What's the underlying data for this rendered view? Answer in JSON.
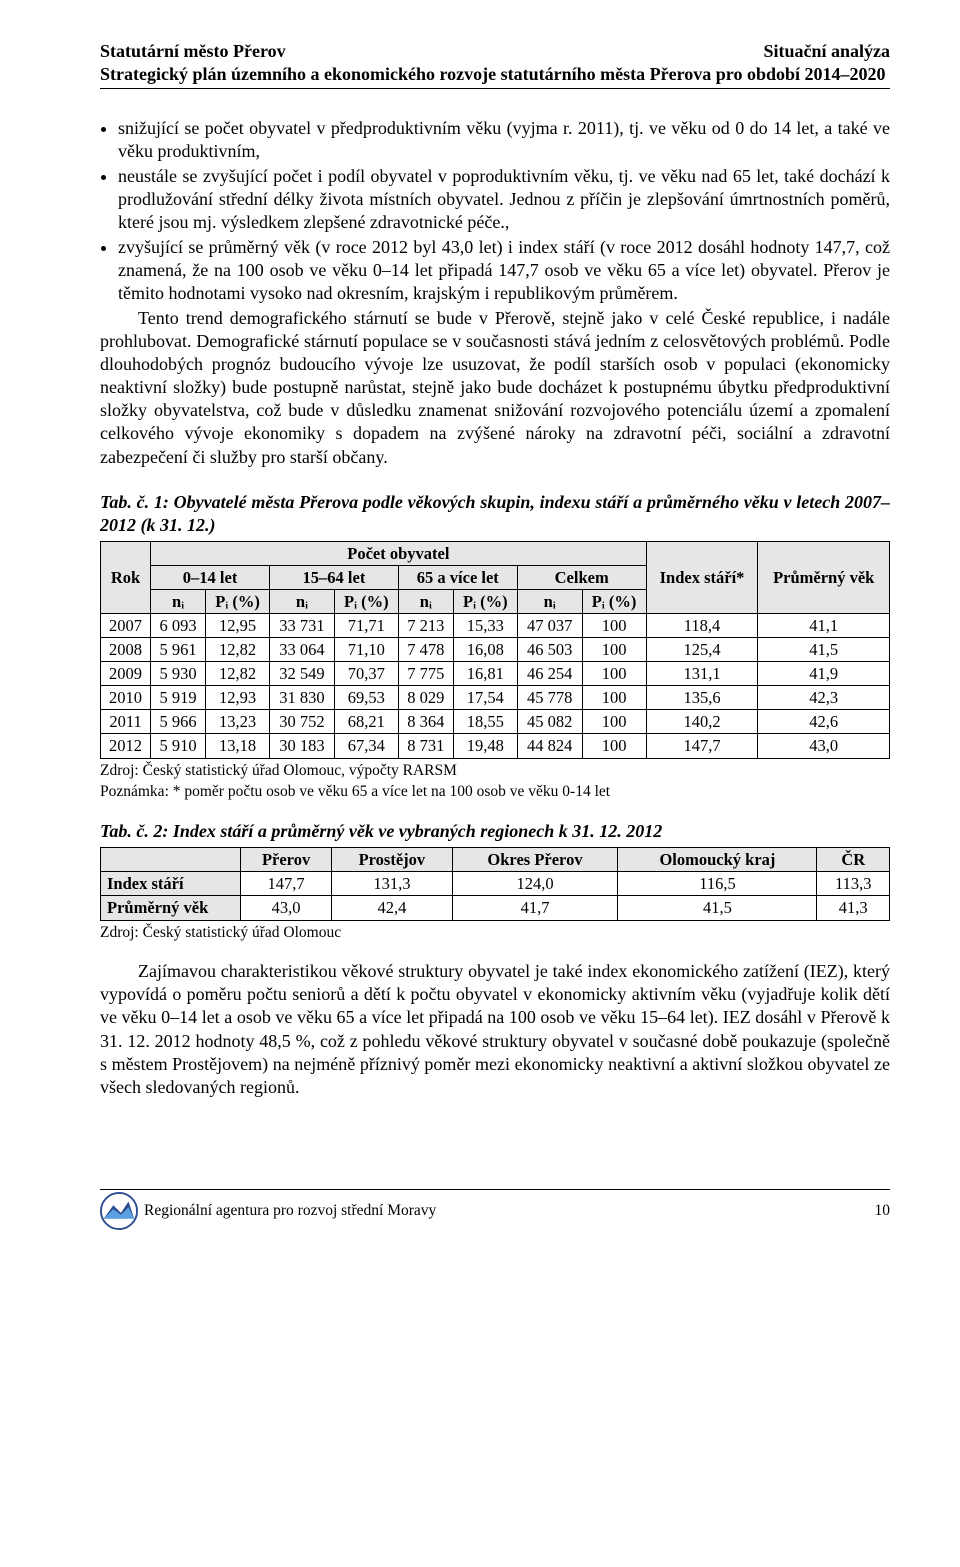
{
  "header": {
    "left": "Statutární město Přerov",
    "right": "Situační analýza",
    "sub": "Strategický plán územního a ekonomického rozvoje statutárního města Přerova pro období 2014–2020"
  },
  "bullets": [
    "snižující se počet obyvatel v předproduktivním věku (vyjma r. 2011), tj. ve věku od 0 do 14 let, a také ve věku produktivním,",
    "neustále se zvyšující počet i podíl obyvatel v poproduktivním věku, tj. ve věku nad 65 let, také dochází k prodlužování střední délky života místních obyvatel. Jednou z příčin je zlepšování úmrtnostních poměrů, které jsou mj. výsledkem zlepšené zdravotnické péče.,",
    "zvyšující se průměrný věk (v roce 2012 byl 43,0 let) i index stáří (v roce 2012 dosáhl hodnoty 147,7, což znamená, že na 100 osob ve věku 0–14 let připadá 147,7 osob ve věku 65 a více let) obyvatel. Přerov je těmito hodnotami vysoko nad okresním, krajským i republikovým průměrem."
  ],
  "para1": "Tento trend demografického stárnutí se bude v Přerově, stejně jako v celé České republice, i nadále prohlubovat. Demografické stárnutí populace se v současnosti stává jedním z celosvětových problémů. Podle dlouhodobých prognóz budoucího vývoje lze usuzovat, že podíl starších osob v populaci (ekonomicky neaktivní složky) bude postupně narůstat, stejně jako bude docházet k postupnému úbytku předproduktivní složky obyvatelstva, což bude v důsledku znamenat snižování rozvojového potenciálu území a zpomalení celkového vývoje ekonomiky s dopadem na zvýšené nároky na zdravotní péči, sociální a zdravotní zabezpečení či služby pro starší občany.",
  "tab1": {
    "caption": "Tab. č. 1:  Obyvatelé města Přerova podle věkových skupin, indexu stáří a průměrného věku v letech 2007–2012 (k 31. 12.)",
    "head": {
      "rok": "Rok",
      "pocet": "Počet obyvatel",
      "g0": "0–14 let",
      "g1": "15–64 let",
      "g2": "65 a více let",
      "g3": "Celkem",
      "idx": "Index stáří*",
      "vek": "Průměrný věk",
      "ni": "nᵢ",
      "pi": "Pᵢ (%)"
    },
    "rows": [
      {
        "rok": "2007",
        "a": "6 093",
        "ap": "12,95",
        "b": "33 731",
        "bp": "71,71",
        "c": "7 213",
        "cp": "15,33",
        "d": "47 037",
        "dp": "100",
        "idx": "118,4",
        "vek": "41,1"
      },
      {
        "rok": "2008",
        "a": "5 961",
        "ap": "12,82",
        "b": "33 064",
        "bp": "71,10",
        "c": "7 478",
        "cp": "16,08",
        "d": "46 503",
        "dp": "100",
        "idx": "125,4",
        "vek": "41,5"
      },
      {
        "rok": "2009",
        "a": "5 930",
        "ap": "12,82",
        "b": "32 549",
        "bp": "70,37",
        "c": "7 775",
        "cp": "16,81",
        "d": "46 254",
        "dp": "100",
        "idx": "131,1",
        "vek": "41,9"
      },
      {
        "rok": "2010",
        "a": "5 919",
        "ap": "12,93",
        "b": "31 830",
        "bp": "69,53",
        "c": "8 029",
        "cp": "17,54",
        "d": "45 778",
        "dp": "100",
        "idx": "135,6",
        "vek": "42,3"
      },
      {
        "rok": "2011",
        "a": "5 966",
        "ap": "13,23",
        "b": "30 752",
        "bp": "68,21",
        "c": "8 364",
        "cp": "18,55",
        "d": "45 082",
        "dp": "100",
        "idx": "140,2",
        "vek": "42,6"
      },
      {
        "rok": "2012",
        "a": "5 910",
        "ap": "13,18",
        "b": "30 183",
        "bp": "67,34",
        "c": "8 731",
        "cp": "19,48",
        "d": "44 824",
        "dp": "100",
        "idx": "147,7",
        "vek": "43,0"
      }
    ],
    "source": "Zdroj: Český statistický úřad Olomouc, výpočty RARSM",
    "note": "Poznámka: * poměr počtu osob ve věku 65 a více let na 100 osob ve věku 0-14 let"
  },
  "tab2": {
    "caption": "Tab. č. 2: Index stáří a průměrný věk ve vybraných regionech k 31. 12. 2012",
    "cols": [
      "",
      "Přerov",
      "Prostějov",
      "Okres Přerov",
      "Olomoucký kraj",
      "ČR"
    ],
    "rows": [
      {
        "label": "Index stáří",
        "v": [
          "147,7",
          "131,3",
          "124,0",
          "116,5",
          "113,3"
        ]
      },
      {
        "label": "Průměrný věk",
        "v": [
          "43,0",
          "42,4",
          "41,7",
          "41,5",
          "41,3"
        ]
      }
    ],
    "source": "Zdroj: Český statistický úřad Olomouc"
  },
  "para2": "Zajímavou charakteristikou věkové struktury obyvatel je také index ekonomického zatížení (IEZ), který vypovídá o poměru počtu seniorů a dětí k počtu obyvatel v ekonomicky aktivním věku (vyjadřuje kolik dětí ve věku 0–14 let a osob ve věku 65 a více let připadá na 100 osob ve věku 15–64 let). IEZ dosáhl v Přerově k 31. 12. 2012 hodnoty 48,5 %, což z pohledu věkové struktury obyvatel v současné době poukazuje (společně s městem Prostějovem) na nejméně příznivý poměr mezi ekonomicky neaktivní a aktivní složkou obyvatel ze všech sledovaných regionů.",
  "footer": {
    "agency": "Regionální agentura pro rozvoj střední Moravy",
    "page": "10"
  }
}
